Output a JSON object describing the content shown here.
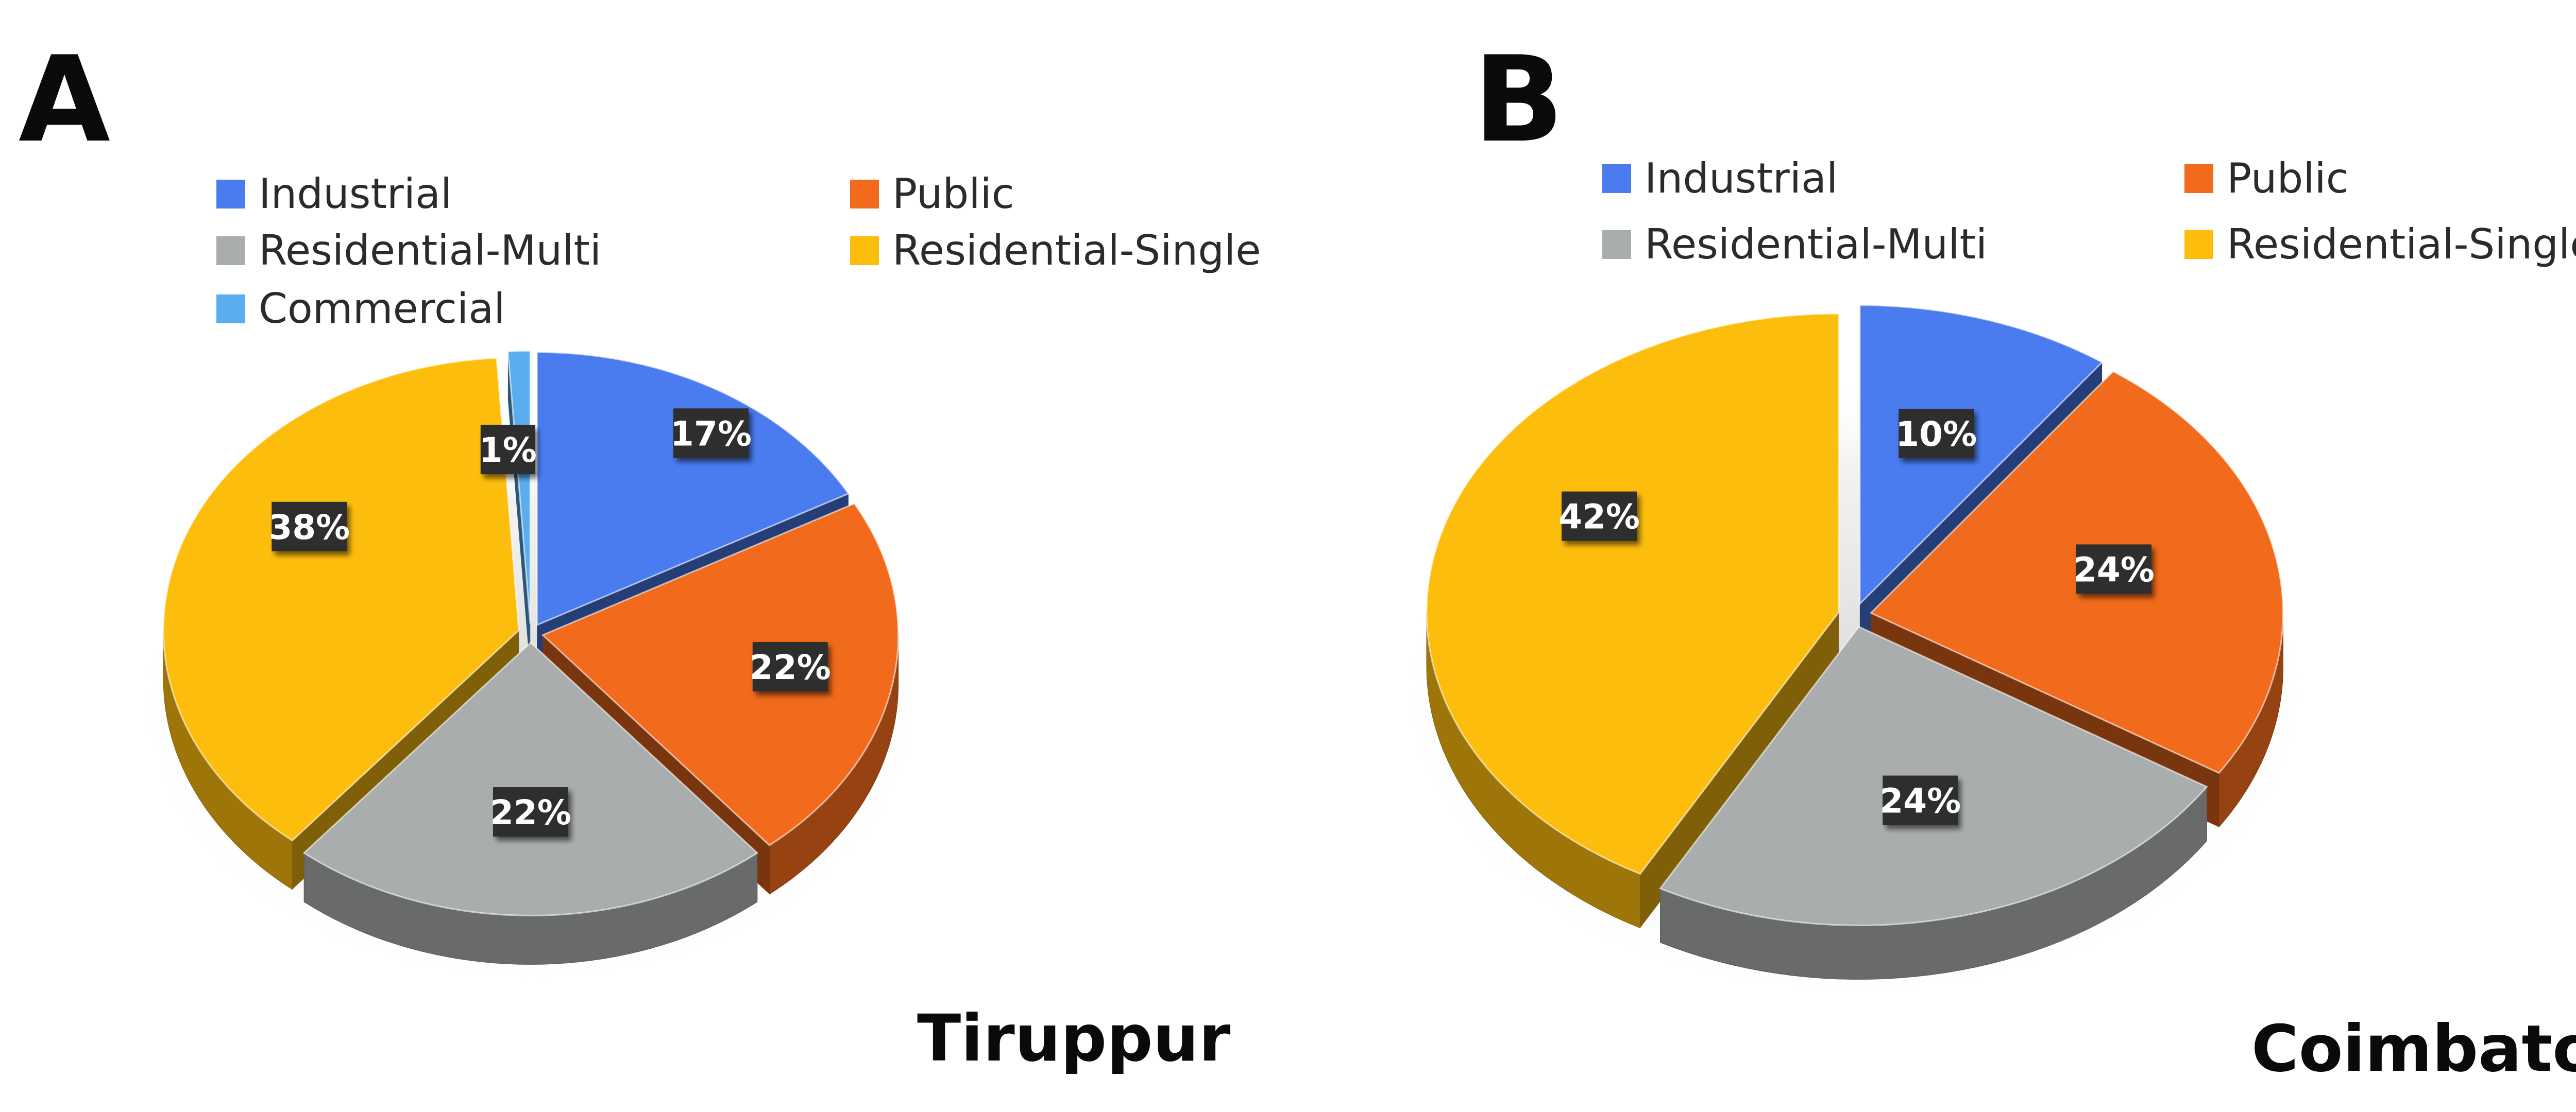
{
  "chart_data": [
    {
      "type": "pie",
      "panel_label": "A",
      "title": "Tiruppur",
      "categories": [
        "Industrial",
        "Public",
        "Residential-Multi",
        "Residential-Single",
        "Commercial"
      ],
      "values": [
        17,
        22,
        22,
        38,
        1
      ],
      "value_labels": [
        "17%",
        "22%",
        "22%",
        "38%",
        "1%"
      ],
      "colors": [
        "#4a7cf0",
        "#f26a1b",
        "#a9adad",
        "#fdbd0d",
        "#5aaef0"
      ],
      "legend": [
        "Industrial",
        "Public",
        "Residential-Multi",
        "Residential-Single",
        "Commercial"
      ],
      "legend_placement": "top",
      "style": "3d-exploded"
    },
    {
      "type": "pie",
      "panel_label": "B",
      "title": "Coimbatore",
      "categories": [
        "Industrial",
        "Public",
        "Residential-Multi",
        "Residential-Single"
      ],
      "values": [
        10,
        24,
        24,
        42
      ],
      "value_labels": [
        "10%",
        "24%",
        "24%",
        "42%"
      ],
      "colors": [
        "#4a7cf0",
        "#f26a1b",
        "#a9adad",
        "#fdbd0d"
      ],
      "legend": [
        "Industrial",
        "Public",
        "Residential-Multi",
        "Residential-Single"
      ],
      "legend_placement": "top",
      "style": "3d-exploded"
    }
  ]
}
